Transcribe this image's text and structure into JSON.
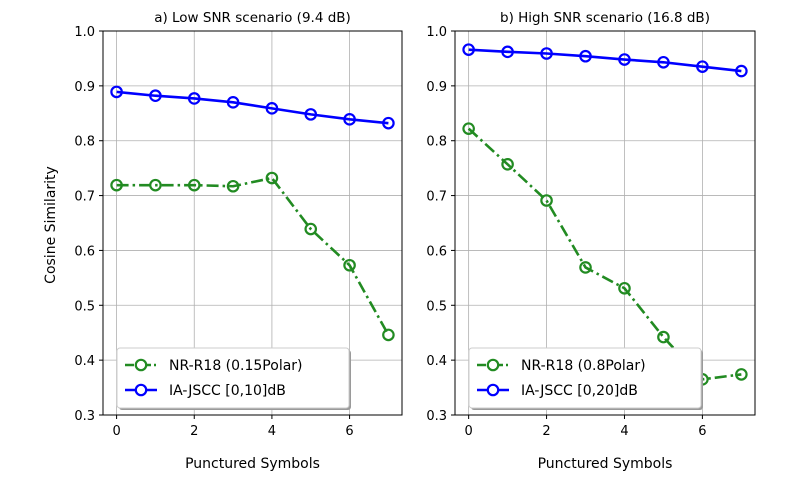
{
  "figure": {
    "ylabel": "Cosine Similarity"
  },
  "chart_data": [
    {
      "type": "line",
      "title": "a) Low SNR scenario (9.4 dB)",
      "xlabel": "Punctured Symbols",
      "ylabel": "Cosine Similarity",
      "xlim": [
        -0.35,
        7.35
      ],
      "ylim": [
        0.3,
        1.0
      ],
      "xticks": [
        0,
        2,
        4,
        6
      ],
      "yticks": [
        0.3,
        0.4,
        0.5,
        0.6,
        0.7,
        0.8,
        0.9,
        1.0
      ],
      "ytick_labels": [
        "0.3",
        "0.4",
        "0.5",
        "0.6",
        "0.7",
        "0.8",
        "0.9",
        "1.0"
      ],
      "grid": true,
      "legend_position": "lower-left",
      "x": [
        0,
        1,
        2,
        3,
        4,
        5,
        6,
        7
      ],
      "series": [
        {
          "name": "NR-R18 (0.15Polar)",
          "color": "#228B22",
          "linestyle": "dashdot",
          "marker": "open-circle",
          "values": [
            0.719,
            0.719,
            0.719,
            0.717,
            0.732,
            0.639,
            0.573,
            0.446
          ]
        },
        {
          "name": "IA-JSCC [0,10]dB",
          "color": "#0000ff",
          "linestyle": "solid",
          "marker": "open-circle",
          "values": [
            0.889,
            0.882,
            0.877,
            0.87,
            0.859,
            0.848,
            0.839,
            0.832
          ]
        }
      ]
    },
    {
      "type": "line",
      "title": "b) High SNR scenario (16.8 dB)",
      "xlabel": "Punctured Symbols",
      "ylabel": "",
      "xlim": [
        -0.35,
        7.35
      ],
      "ylim": [
        0.3,
        1.0
      ],
      "xticks": [
        0,
        2,
        4,
        6
      ],
      "yticks": [
        0.3,
        0.4,
        0.5,
        0.6,
        0.7,
        0.8,
        0.9,
        1.0
      ],
      "ytick_labels": [
        "0.3",
        "0.4",
        "0.5",
        "0.6",
        "0.7",
        "0.8",
        "0.9",
        "1.0"
      ],
      "grid": true,
      "legend_position": "lower-left",
      "x": [
        0,
        1,
        2,
        3,
        4,
        5,
        6,
        7
      ],
      "series": [
        {
          "name": "NR-R18 (0.8Polar)",
          "color": "#228B22",
          "linestyle": "dashdot",
          "marker": "open-circle",
          "values": [
            0.822,
            0.757,
            0.691,
            0.569,
            0.531,
            0.442,
            0.365,
            0.374
          ]
        },
        {
          "name": "IA-JSCC [0,20]dB",
          "color": "#0000ff",
          "linestyle": "solid",
          "marker": "open-circle",
          "values": [
            0.966,
            0.962,
            0.959,
            0.954,
            0.948,
            0.943,
            0.935,
            0.927
          ]
        }
      ]
    }
  ]
}
